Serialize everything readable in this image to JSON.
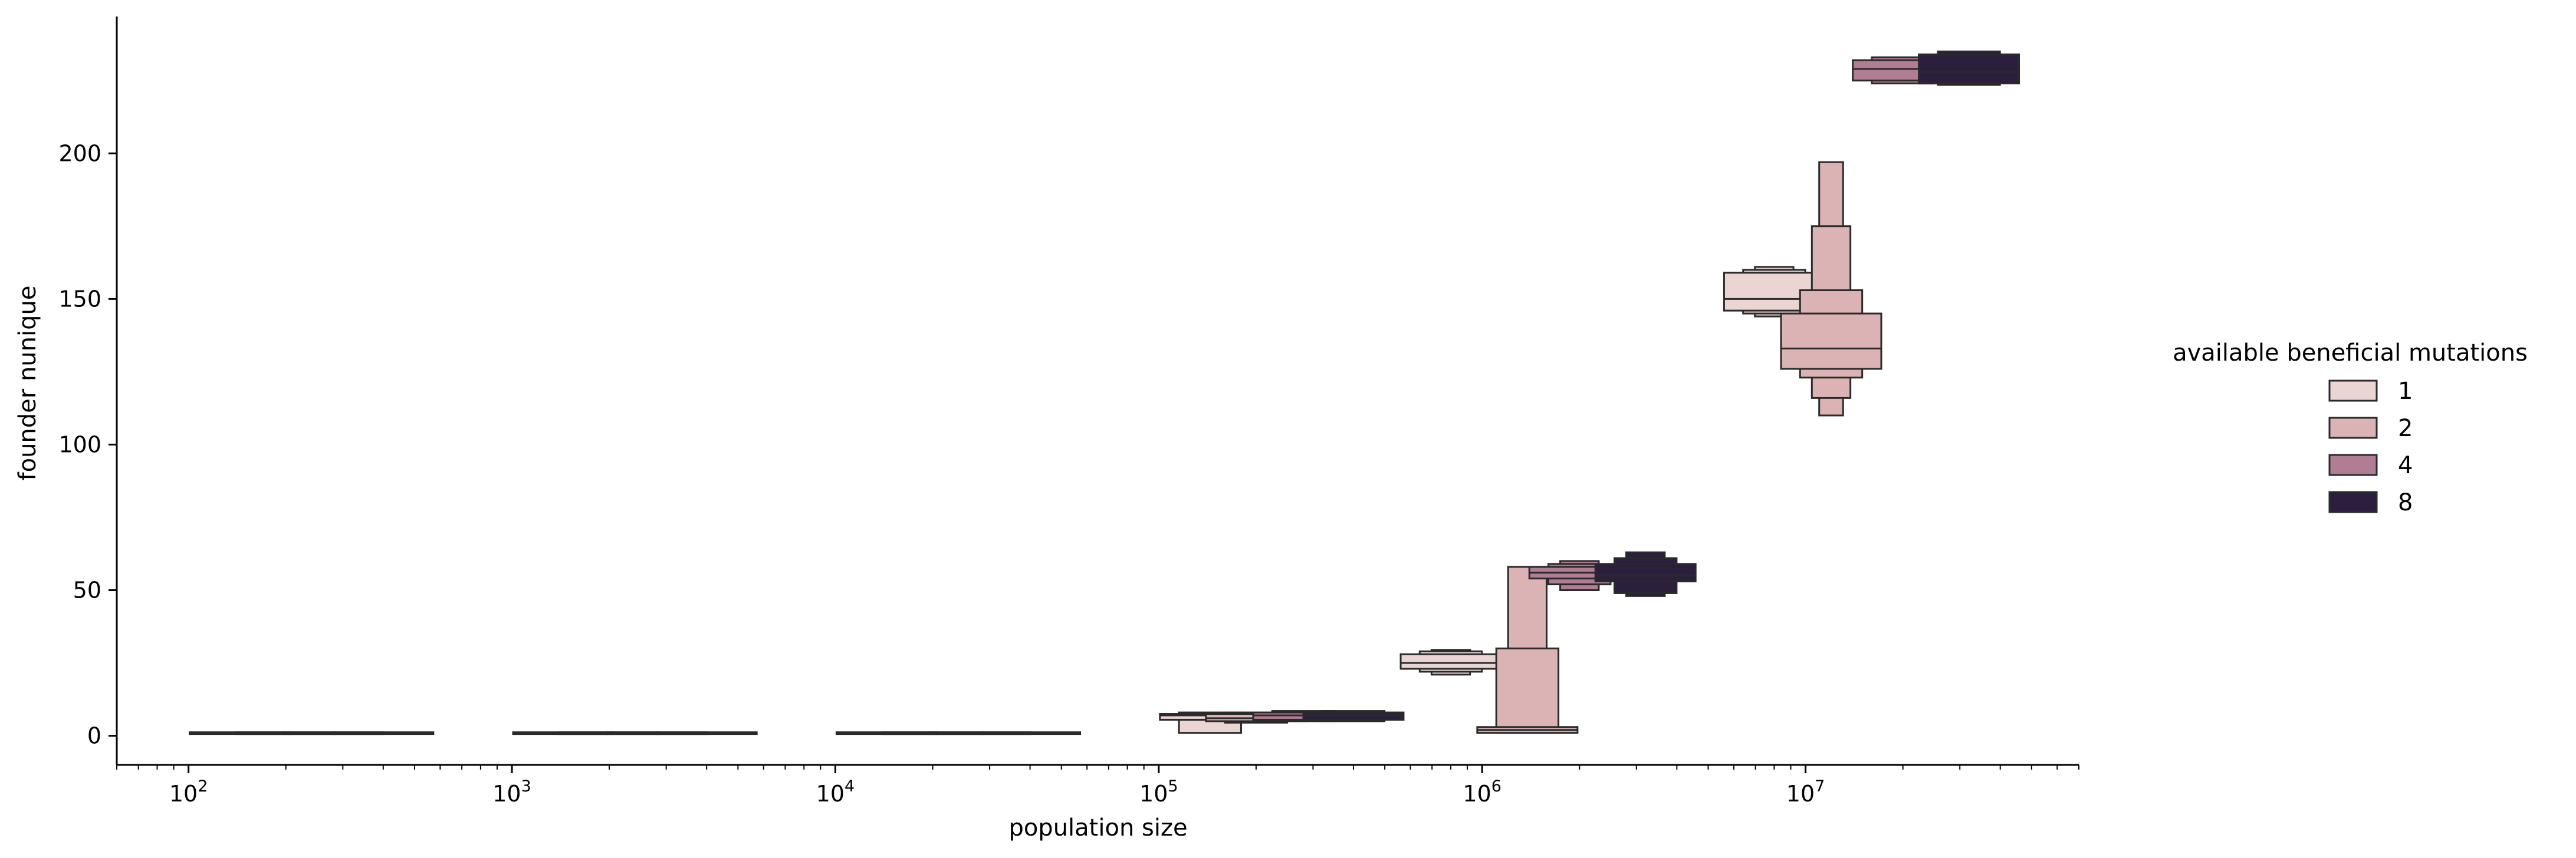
{
  "chart_data": {
    "type": "boxen",
    "title": "",
    "xlabel": "population size",
    "ylabel": "founder nunique",
    "xscale": "log",
    "xlim": [
      60,
      70000000
    ],
    "ylim": [
      -10,
      247
    ],
    "x_major_ticks": [
      {
        "value": 100,
        "base": "10",
        "exp": "2"
      },
      {
        "value": 1000,
        "base": "10",
        "exp": "3"
      },
      {
        "value": 10000,
        "base": "10",
        "exp": "4"
      },
      {
        "value": 100000,
        "base": "10",
        "exp": "5"
      },
      {
        "value": 1000000,
        "base": "10",
        "exp": "6"
      },
      {
        "value": 10000000,
        "base": "10",
        "exp": "7"
      }
    ],
    "y_ticks": [
      {
        "value": 0,
        "label": "0"
      },
      {
        "value": 50,
        "label": "50"
      },
      {
        "value": 100,
        "label": "100"
      },
      {
        "value": 150,
        "label": "150"
      },
      {
        "value": 200,
        "label": "200"
      }
    ],
    "legend": {
      "title": "available beneficial mutations",
      "placement": "right",
      "entries": [
        {
          "label": "1",
          "color": "#ead5d3"
        },
        {
          "label": "2",
          "color": "#dcb3b5"
        },
        {
          "label": "4",
          "color": "#b07d94"
        },
        {
          "label": "8",
          "color": "#2c1e3d"
        }
      ]
    },
    "series": [
      {
        "name": "1",
        "color": "#ead5d3",
        "groups": [
          {
            "x": 144,
            "median": 1,
            "boxes": [
              [
                0.8,
                1.2
              ]
            ]
          },
          {
            "x": 1441,
            "median": 1,
            "boxes": [
              [
                0.8,
                1.2
              ]
            ]
          },
          {
            "x": 14410,
            "median": 1,
            "boxes": [
              [
                0.8,
                1.2
              ]
            ]
          },
          {
            "x": 144100,
            "median": 7,
            "boxes": [
              [
                5.5,
                7.5
              ],
              [
                1,
                8
              ]
            ]
          },
          {
            "x": 800000,
            "median": 25,
            "boxes": [
              [
                23,
                28
              ],
              [
                22,
                29
              ],
              [
                21,
                29.5
              ]
            ]
          },
          {
            "x": 8000000,
            "median": 150,
            "boxes": [
              [
                146,
                159
              ],
              [
                145,
                160
              ],
              [
                144,
                161
              ]
            ]
          }
        ]
      },
      {
        "name": "2",
        "color": "#dcb3b5",
        "groups": [
          {
            "x": 200,
            "median": 1,
            "boxes": [
              [
                0.8,
                1.2
              ]
            ]
          },
          {
            "x": 2000,
            "median": 1,
            "boxes": [
              [
                0.8,
                1.2
              ]
            ]
          },
          {
            "x": 20000,
            "median": 1,
            "boxes": [
              [
                0.8,
                1.2
              ]
            ]
          },
          {
            "x": 200000,
            "median": 6,
            "boxes": [
              [
                5,
                7.5
              ],
              [
                4.5,
                8
              ]
            ]
          },
          {
            "x": 1380000,
            "median": 2,
            "boxes": [
              [
                1,
                3
              ],
              [
                1,
                30
              ],
              [
                1,
                58
              ]
            ]
          },
          {
            "x": 12000000,
            "median": 133,
            "boxes": [
              [
                126,
                145
              ],
              [
                123,
                153
              ],
              [
                116,
                175
              ],
              [
                110,
                197
              ]
            ]
          }
        ]
      },
      {
        "name": "4",
        "color": "#b07d94",
        "groups": [
          {
            "x": 280,
            "median": 1,
            "boxes": [
              [
                0.8,
                1.2
              ]
            ]
          },
          {
            "x": 2800,
            "median": 1,
            "boxes": [
              [
                0.8,
                1.2
              ]
            ]
          },
          {
            "x": 28000,
            "median": 1,
            "boxes": [
              [
                0.8,
                1.2
              ]
            ]
          },
          {
            "x": 280000,
            "median": 7,
            "boxes": [
              [
                5.5,
                8
              ],
              [
                5,
                8.5
              ]
            ]
          },
          {
            "x": 2000000,
            "median": 56,
            "boxes": [
              [
                54,
                58
              ],
              [
                52,
                59
              ],
              [
                50,
                60
              ]
            ]
          },
          {
            "x": 20000000,
            "median": 229,
            "boxes": [
              [
                225,
                232
              ],
              [
                224,
                233
              ]
            ]
          }
        ]
      },
      {
        "name": "8",
        "color": "#2c1e3d",
        "groups": [
          {
            "x": 400,
            "median": 1,
            "boxes": [
              [
                0.8,
                1.2
              ]
            ]
          },
          {
            "x": 4000,
            "median": 1,
            "boxes": [
              [
                0.8,
                1.2
              ]
            ]
          },
          {
            "x": 40000,
            "median": 1,
            "boxes": [
              [
                0.8,
                1.2
              ]
            ]
          },
          {
            "x": 400000,
            "median": 7,
            "boxes": [
              [
                5.5,
                8
              ],
              [
                5,
                8.5
              ]
            ]
          },
          {
            "x": 3200000,
            "median": 55,
            "boxes": [
              [
                53,
                59
              ],
              [
                49,
                61
              ],
              [
                48,
                63
              ]
            ]
          },
          {
            "x": 32000000,
            "median": 228,
            "boxes": [
              [
                224,
                234
              ],
              [
                223.5,
                235
              ]
            ]
          }
        ]
      }
    ]
  }
}
